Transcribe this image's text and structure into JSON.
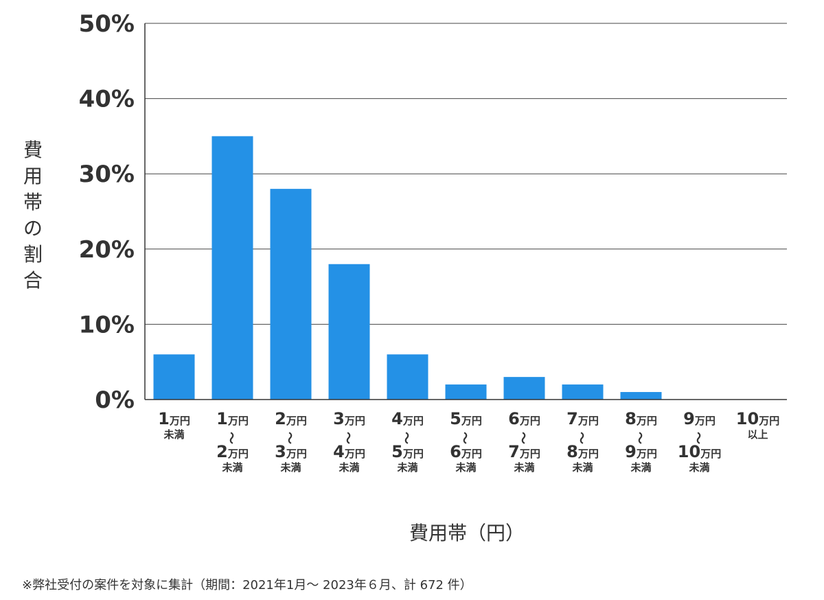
{
  "chart_data": {
    "type": "bar",
    "ylabel": "費用帯の割合",
    "xlabel": "費用帯（円）",
    "ylim": [
      0,
      50
    ],
    "y_ticks": [
      "0%",
      "10%",
      "20%",
      "30%",
      "40%",
      "50%"
    ],
    "y_tick_values": [
      0,
      10,
      20,
      30,
      40,
      50
    ],
    "grid": true,
    "bar_color": "#2491e6",
    "categories": [
      [
        "1万円",
        "未満"
      ],
      [
        "1万円",
        "〜",
        "2万円",
        "未満"
      ],
      [
        "2万円",
        "〜",
        "3万円",
        "未満"
      ],
      [
        "3万円",
        "〜",
        "4万円",
        "未満"
      ],
      [
        "4万円",
        "〜",
        "5万円",
        "未満"
      ],
      [
        "5万円",
        "〜",
        "6万円",
        "未満"
      ],
      [
        "6万円",
        "〜",
        "7万円",
        "未満"
      ],
      [
        "7万円",
        "〜",
        "8万円",
        "未満"
      ],
      [
        "8万円",
        "〜",
        "9万円",
        "未満"
      ],
      [
        "9万円",
        "〜",
        "10万円",
        "未満"
      ],
      [
        "10万円",
        "以上"
      ]
    ],
    "values": [
      6,
      35,
      28,
      18,
      6,
      2,
      3,
      2,
      1,
      0,
      0
    ]
  },
  "footnote": "※弊社受付の案件を対象に集計（期間：2021年1月～ 2023年６月、計 672 件）"
}
